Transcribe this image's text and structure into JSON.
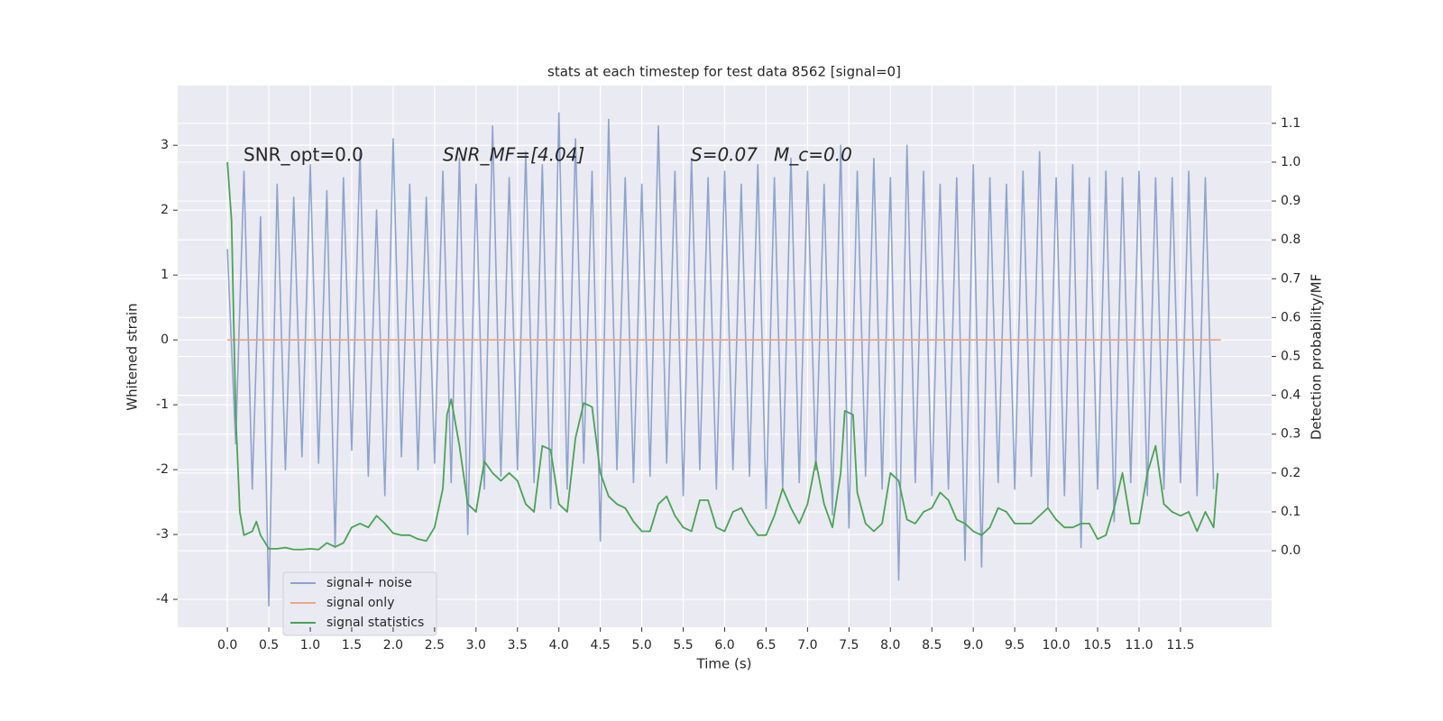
{
  "chart_data": {
    "type": "line",
    "title": "stats at each timestep for test data 8562 [signal=0]",
    "xlabel": "Time (s)",
    "ylabel": "Whitened strain",
    "y2label": "Detection probability/MF",
    "xlim": [
      -0.6,
      12.6
    ],
    "ylim": [
      -4.43,
      3.92
    ],
    "y2lim": [
      -0.197,
      1.197
    ],
    "grid": true,
    "xticks": [
      {
        "value": 0,
        "label": "0.0"
      },
      {
        "value": 0.5,
        "label": "0.5"
      },
      {
        "value": 1,
        "label": "1.0"
      },
      {
        "value": 1.5,
        "label": "1.5"
      },
      {
        "value": 2,
        "label": "2.0"
      },
      {
        "value": 2.5,
        "label": "2.5"
      },
      {
        "value": 3,
        "label": "3.0"
      },
      {
        "value": 3.5,
        "label": "3.5"
      },
      {
        "value": 4,
        "label": "4.0"
      },
      {
        "value": 4.5,
        "label": "4.5"
      },
      {
        "value": 5,
        "label": "5.0"
      },
      {
        "value": 5.5,
        "label": "5.5"
      },
      {
        "value": 6,
        "label": "6.0"
      },
      {
        "value": 6.5,
        "label": "6.5"
      },
      {
        "value": 7,
        "label": "7.0"
      },
      {
        "value": 7.5,
        "label": "7.5"
      },
      {
        "value": 8,
        "label": "8.0"
      },
      {
        "value": 8.5,
        "label": "8.5"
      },
      {
        "value": 9,
        "label": "9.0"
      },
      {
        "value": 9.5,
        "label": "9.5"
      },
      {
        "value": 10,
        "label": "10.0"
      },
      {
        "value": 10.5,
        "label": "10.5"
      },
      {
        "value": 11,
        "label": "11.0"
      },
      {
        "value": 11.5,
        "label": "11.5"
      }
    ],
    "yticks": [
      -4,
      -3,
      -2,
      -1,
      0,
      1,
      2,
      3
    ],
    "y2ticks": [
      {
        "value": 0,
        "label": "0.0"
      },
      0.1,
      0.2,
      0.3,
      0.4,
      0.5,
      0.6,
      0.7,
      0.8,
      0.9,
      {
        "value": 1,
        "label": "1.0"
      },
      1.1
    ],
    "annotations": [
      "SNR_opt=0.0",
      "SNR_MF=[4.04]",
      "S=0.07",
      "M_c=0.0"
    ],
    "legend": "lower left",
    "series": [
      {
        "name": "signal+ noise",
        "color": "#8fa3cc",
        "x": [
          0,
          0.1,
          0.2,
          0.3,
          0.4,
          0.5,
          0.6,
          0.7,
          0.8,
          0.9,
          1,
          1.1,
          1.2,
          1.3,
          1.4,
          1.5,
          1.6,
          1.7,
          1.8,
          1.9,
          2,
          2.1,
          2.2,
          2.3,
          2.4,
          2.5,
          2.6,
          2.7,
          2.8,
          2.9,
          3,
          3.1,
          3.2,
          3.3,
          3.4,
          3.5,
          3.6,
          3.7,
          3.8,
          3.9,
          4,
          4.1,
          4.2,
          4.3,
          4.4,
          4.5,
          4.6,
          4.7,
          4.8,
          4.9,
          5,
          5.1,
          5.2,
          5.3,
          5.4,
          5.5,
          5.6,
          5.7,
          5.8,
          5.9,
          6,
          6.1,
          6.2,
          6.3,
          6.4,
          6.5,
          6.6,
          6.7,
          6.8,
          6.9,
          7,
          7.1,
          7.2,
          7.3,
          7.4,
          7.5,
          7.6,
          7.7,
          7.8,
          7.9,
          8,
          8.1,
          8.2,
          8.3,
          8.4,
          8.5,
          8.6,
          8.7,
          8.8,
          8.9,
          9,
          9.1,
          9.2,
          9.3,
          9.4,
          9.5,
          9.6,
          9.7,
          9.8,
          9.9,
          10,
          10.1,
          10.2,
          10.3,
          10.4,
          10.5,
          10.6,
          10.7,
          10.8,
          10.9,
          11,
          11.1,
          11.2,
          11.3,
          11.4,
          11.5,
          11.6,
          11.7,
          11.8,
          11.9
        ],
        "values": [
          1.4,
          -1.6,
          2.6,
          -2.3,
          1.9,
          -4.1,
          2.4,
          -2.0,
          2.2,
          -1.8,
          2.7,
          -1.9,
          2.3,
          -3.2,
          2.5,
          -1.7,
          2.9,
          -2.1,
          2.0,
          -2.4,
          3.1,
          -1.8,
          2.4,
          -2.0,
          2.2,
          -1.9,
          2.6,
          -2.2,
          2.8,
          -3.0,
          2.4,
          -2.3,
          3.3,
          -2.1,
          2.5,
          -2.0,
          2.9,
          -2.2,
          2.7,
          -2.6,
          3.5,
          -2.3,
          3.1,
          -1.9,
          2.6,
          -3.1,
          3.4,
          -2.0,
          2.5,
          -2.2,
          2.4,
          -2.1,
          3.3,
          -1.9,
          2.6,
          -2.4,
          2.8,
          -2.0,
          2.5,
          -2.3,
          2.6,
          -2.0,
          2.4,
          -2.1,
          2.7,
          -2.6,
          2.5,
          -2.3,
          2.8,
          -2.2,
          2.6,
          -2.0,
          2.4,
          -2.7,
          3.0,
          -2.9,
          2.6,
          -2.1,
          2.8,
          -2.3,
          2.5,
          -3.7,
          3.0,
          -2.2,
          2.6,
          -2.4,
          2.4,
          -2.3,
          2.5,
          -3.4,
          2.7,
          -3.5,
          2.5,
          -2.2,
          2.4,
          -2.3,
          2.6,
          -2.1,
          2.9,
          -2.6,
          2.5,
          -2.4,
          2.7,
          -3.2,
          2.5,
          -2.3,
          2.6,
          -2.8,
          2.5,
          -2.2,
          2.6,
          -2.4,
          2.5,
          -2.3,
          2.5,
          -2.2,
          2.6,
          -2.4,
          2.5,
          -2.3
        ]
      },
      {
        "name": "signal only",
        "color": "#e8a88a",
        "x": [
          0,
          11.99
        ],
        "values": [
          0,
          0
        ]
      },
      {
        "name": "signal statistics",
        "color": "#4aa356",
        "axis": "y2",
        "x": [
          0,
          0.05,
          0.1,
          0.15,
          0.2,
          0.3,
          0.35,
          0.4,
          0.5,
          0.6,
          0.7,
          0.8,
          0.9,
          1,
          1.1,
          1.2,
          1.3,
          1.4,
          1.5,
          1.6,
          1.7,
          1.8,
          1.9,
          2,
          2.1,
          2.2,
          2.3,
          2.4,
          2.5,
          2.6,
          2.65,
          2.7,
          2.8,
          2.9,
          3,
          3.1,
          3.2,
          3.3,
          3.4,
          3.5,
          3.6,
          3.7,
          3.8,
          3.9,
          4,
          4.1,
          4.2,
          4.3,
          4.4,
          4.5,
          4.6,
          4.7,
          4.8,
          4.9,
          5,
          5.1,
          5.2,
          5.3,
          5.4,
          5.5,
          5.6,
          5.7,
          5.8,
          5.9,
          6,
          6.1,
          6.2,
          6.3,
          6.4,
          6.5,
          6.6,
          6.7,
          6.8,
          6.9,
          7,
          7.1,
          7.2,
          7.3,
          7.4,
          7.45,
          7.55,
          7.6,
          7.7,
          7.8,
          7.9,
          8,
          8.1,
          8.2,
          8.3,
          8.4,
          8.5,
          8.6,
          8.7,
          8.8,
          8.9,
          9,
          9.1,
          9.2,
          9.3,
          9.4,
          9.5,
          9.6,
          9.7,
          9.8,
          9.9,
          10,
          10.1,
          10.2,
          10.3,
          10.4,
          10.5,
          10.6,
          10.7,
          10.8,
          10.9,
          11,
          11.1,
          11.2,
          11.3,
          11.4,
          11.5,
          11.6,
          11.7,
          11.8,
          11.9,
          11.95
        ],
        "values": [
          1.0,
          0.85,
          0.35,
          0.1,
          0.04,
          0.05,
          0.075,
          0.04,
          0.005,
          0.005,
          0.008,
          0.003,
          0.003,
          0.005,
          0.003,
          0.02,
          0.01,
          0.02,
          0.06,
          0.07,
          0.06,
          0.09,
          0.07,
          0.045,
          0.04,
          0.04,
          0.03,
          0.025,
          0.06,
          0.16,
          0.35,
          0.39,
          0.27,
          0.12,
          0.1,
          0.23,
          0.2,
          0.18,
          0.2,
          0.18,
          0.12,
          0.1,
          0.27,
          0.26,
          0.12,
          0.1,
          0.29,
          0.38,
          0.37,
          0.2,
          0.14,
          0.12,
          0.11,
          0.075,
          0.05,
          0.05,
          0.12,
          0.14,
          0.09,
          0.06,
          0.05,
          0.13,
          0.13,
          0.06,
          0.05,
          0.1,
          0.11,
          0.07,
          0.04,
          0.04,
          0.09,
          0.16,
          0.11,
          0.07,
          0.12,
          0.23,
          0.12,
          0.06,
          0.2,
          0.36,
          0.35,
          0.15,
          0.07,
          0.05,
          0.07,
          0.2,
          0.18,
          0.08,
          0.07,
          0.1,
          0.11,
          0.15,
          0.13,
          0.08,
          0.07,
          0.05,
          0.04,
          0.06,
          0.11,
          0.1,
          0.07,
          0.07,
          0.07,
          0.09,
          0.11,
          0.08,
          0.06,
          0.06,
          0.07,
          0.07,
          0.03,
          0.04,
          0.11,
          0.2,
          0.07,
          0.07,
          0.2,
          0.27,
          0.12,
          0.1,
          0.09,
          0.1,
          0.05,
          0.1,
          0.06,
          0.2
        ]
      }
    ]
  }
}
